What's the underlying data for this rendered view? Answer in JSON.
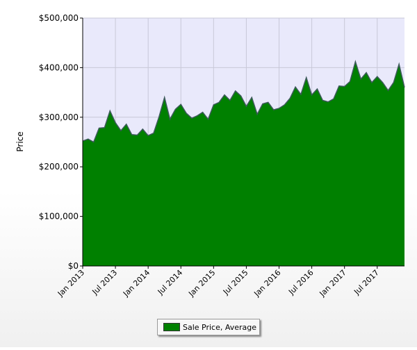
{
  "chart_data": {
    "type": "area",
    "title": "",
    "xlabel": "",
    "ylabel": "Price",
    "ylim": [
      0,
      500000
    ],
    "yticks": [
      0,
      100000,
      200000,
      300000,
      400000,
      500000
    ],
    "ytick_labels": [
      "$0",
      "$100,000",
      "$200,000",
      "$300,000",
      "$400,000",
      "$500,000"
    ],
    "xlim": [
      "Jan 2013",
      "Dec 2017"
    ],
    "xticks": [
      "2013-01",
      "2013-07",
      "2014-01",
      "2014-07",
      "2015-01",
      "2015-07",
      "2016-01",
      "2016-07",
      "2017-01",
      "2017-07"
    ],
    "xtick_labels": [
      "Jan 2013",
      "Jul 2013",
      "Jan 2014",
      "Jul 2014",
      "Jan 2015",
      "Jul 2015",
      "Jan 2016",
      "Jul 2016",
      "Jan 2017",
      "Jul 2017"
    ],
    "grid": true,
    "legend_position": "bottom-center",
    "fill_color": "#008000",
    "line_color": "#3d5a5a",
    "plot_background": "#e9e9fb",
    "series": [
      {
        "name": "Sale Price, Average",
        "x": [
          "2013-01",
          "2013-02",
          "2013-03",
          "2013-04",
          "2013-05",
          "2013-06",
          "2013-07",
          "2013-08",
          "2013-09",
          "2013-10",
          "2013-11",
          "2013-12",
          "2014-01",
          "2014-02",
          "2014-03",
          "2014-04",
          "2014-05",
          "2014-06",
          "2014-07",
          "2014-08",
          "2014-09",
          "2014-10",
          "2014-11",
          "2014-12",
          "2015-01",
          "2015-02",
          "2015-03",
          "2015-04",
          "2015-05",
          "2015-06",
          "2015-07",
          "2015-08",
          "2015-09",
          "2015-10",
          "2015-11",
          "2015-12",
          "2016-01",
          "2016-02",
          "2016-03",
          "2016-04",
          "2016-05",
          "2016-06",
          "2016-07",
          "2016-08",
          "2016-09",
          "2016-10",
          "2016-11",
          "2016-12",
          "2017-01",
          "2017-02",
          "2017-03",
          "2017-04",
          "2017-05",
          "2017-06",
          "2017-07",
          "2017-08",
          "2017-09",
          "2017-10",
          "2017-11",
          "2017-12"
        ],
        "values": [
          252000,
          256000,
          250000,
          278000,
          279000,
          313000,
          289000,
          273000,
          286000,
          265000,
          264000,
          276000,
          263000,
          268000,
          301000,
          340000,
          296000,
          316000,
          326000,
          308000,
          298000,
          303000,
          310000,
          296000,
          325000,
          330000,
          345000,
          334000,
          353000,
          343000,
          322000,
          340000,
          306000,
          327000,
          330000,
          315000,
          318000,
          325000,
          338000,
          361000,
          346000,
          380000,
          345000,
          357000,
          334000,
          331000,
          337000,
          363000,
          362000,
          372000,
          412000,
          377000,
          390000,
          370000,
          382000,
          370000,
          354000,
          370000,
          407000,
          360000
        ]
      }
    ]
  }
}
